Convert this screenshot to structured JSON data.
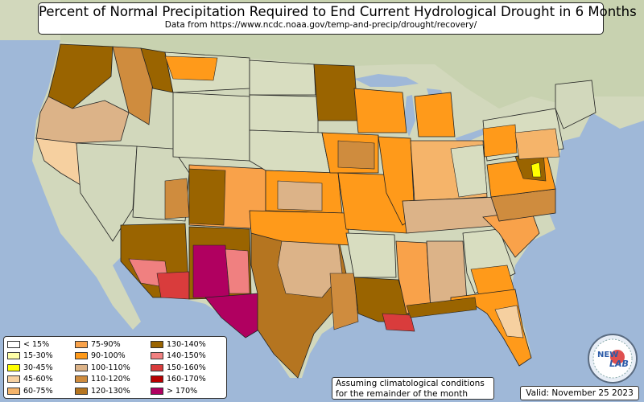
{
  "title": "Percent of Normal Precipitation Required to End Current Hydrological Drought in 6 Months",
  "subtitle": "Data from https://www.ncdc.noaa.gov/temp-and-precip/drought/recovery/",
  "legend": [
    {
      "label": "< 15%",
      "color": "#ffffff"
    },
    {
      "label": "15-30%",
      "color": "#ffffa8"
    },
    {
      "label": "30-45%",
      "color": "#ffff00"
    },
    {
      "label": "45-60%",
      "color": "#f6d0a0"
    },
    {
      "label": "60-75%",
      "color": "#f5b46a"
    },
    {
      "label": "75-90%",
      "color": "#f9a24a"
    },
    {
      "label": "90-100%",
      "color": "#ff9a1a"
    },
    {
      "label": "100-110%",
      "color": "#dcb388"
    },
    {
      "label": "110-120%",
      "color": "#cf8c3e"
    },
    {
      "label": "120-130%",
      "color": "#b57520"
    },
    {
      "label": "130-140%",
      "color": "#9a6400"
    },
    {
      "label": "140-150%",
      "color": "#f08080"
    },
    {
      "label": "150-160%",
      "color": "#d93c3c"
    },
    {
      "label": "160-170%",
      "color": "#b80000"
    },
    {
      "label": "> 170%",
      "color": "#b00060"
    }
  ],
  "note_line1": "Assuming climatological conditions",
  "note_line2": "for the remainder of the month",
  "valid": "Valid: November 25 2023",
  "logo_text_1": "NEW",
  "logo_text_2": "LAB",
  "colors": {
    "ocean": "#9fb8d8",
    "land": "#d8ddc0",
    "state_border": "#222222"
  }
}
